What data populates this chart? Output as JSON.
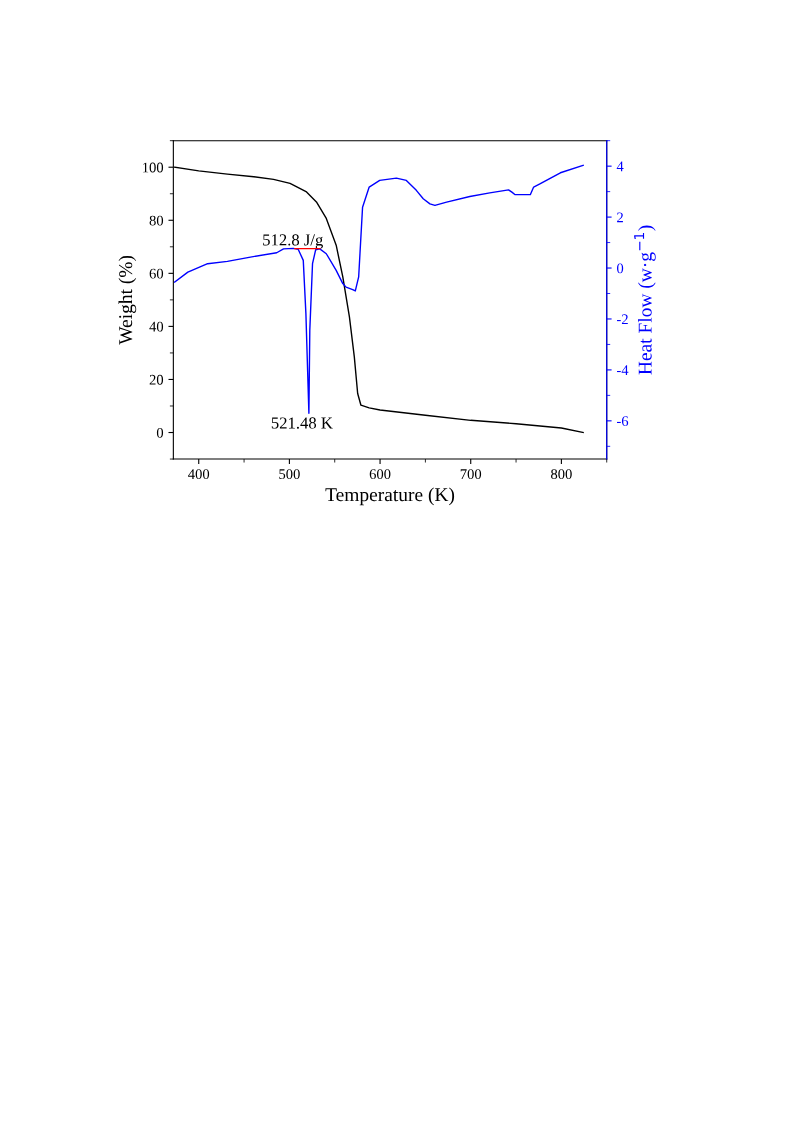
{
  "chart_data": {
    "type": "line",
    "xlabel": "Temperature (K)",
    "ylabel": "Weight (%)",
    "y2label": "Heat Flow (w·g$^{−1}$)",
    "xlim": [
      372,
      850
    ],
    "xticks": [
      400,
      {
        "value": 450,
        "label": null
      },
      500,
      {
        "value": 550,
        "label": null
      },
      600,
      {
        "value": 650,
        "label": null
      },
      700,
      {
        "value": 750,
        "label": null
      },
      800,
      {
        "value": 850,
        "label": null
      }
    ],
    "ylim": [
      -10,
      110
    ],
    "yticks": [
      {
        "value": -10,
        "label": null
      },
      0,
      {
        "value": 10,
        "label": null
      },
      20,
      {
        "value": 30,
        "label": null
      },
      40,
      {
        "value": 50,
        "label": null
      },
      60,
      {
        "value": 70,
        "label": null
      },
      80,
      {
        "value": 90,
        "label": null
      },
      100,
      {
        "value": 110,
        "label": null
      }
    ],
    "y2lim": [
      -7.5,
      5
    ],
    "y2ticks": [
      {
        "value": -7,
        "label": null
      },
      -6,
      {
        "value": -5,
        "label": null
      },
      -4,
      {
        "value": -3,
        "label": null
      },
      -2,
      {
        "value": -1,
        "label": null
      },
      0,
      {
        "value": 1,
        "label": null
      },
      2,
      {
        "value": 3,
        "label": null
      },
      4,
      {
        "value": 5,
        "label": null
      }
    ],
    "grid": false,
    "legend": false,
    "marker": "none",
    "line_style": "solid",
    "series": [
      {
        "color": "#000000",
        "x": [
          373.5,
          400,
          431.6,
          460.7,
          482.5,
          500.7,
          518.9,
          529.8,
          540.7,
          551.6,
          558.9,
          566.2,
          571.6,
          575.3,
          578.9,
          588,
          600,
          650,
          700,
          750,
          800,
          824
        ],
        "values": [
          100,
          98.6,
          97.4,
          96.4,
          95.4,
          93.9,
          90.7,
          86.9,
          80.7,
          70.6,
          58.7,
          43.6,
          28.5,
          14.7,
          10.3,
          9.3,
          8.5,
          6.5,
          4.6,
          3.3,
          1.7,
          0
        ]
      },
      {
        "color": "#0000ff",
        "axis": "y2",
        "x": [
          373.5,
          388,
          409.8,
          431.6,
          457,
          486,
          493.5,
          504.4,
          509.8,
          515.3,
          518.2,
          521.5,
          522.5,
          525.5,
          529,
          533.5,
          540.7,
          551.6,
          558.9,
          562.5,
          569.8,
          572.7,
          576.4,
          580.7,
          588,
          599.6,
          618,
          629,
          640,
          647.6,
          655,
          660.5,
          673.4,
          699,
          721,
          741.7,
          745.4,
          749,
          765.7,
          769.4,
          776.8,
          798.9,
          824
        ],
        "values": [
          -0.55,
          -0.16,
          0.17,
          0.26,
          0.43,
          0.6,
          0.75,
          0.77,
          0.73,
          0.3,
          -1.79,
          -5.7,
          -2.44,
          0.17,
          0.72,
          0.75,
          0.56,
          -0.09,
          -0.61,
          -0.75,
          -0.85,
          -0.9,
          -0.35,
          2.39,
          3.18,
          3.44,
          3.53,
          3.44,
          3.05,
          2.72,
          2.52,
          2.46,
          2.59,
          2.81,
          2.95,
          3.07,
          2.98,
          2.88,
          2.88,
          3.18,
          3.31,
          3.74,
          4.03
        ]
      },
      {
        "color": "#ff0000",
        "axis": "y2",
        "x": [
          506,
          533.5
        ],
        "values": [
          0.76,
          0.76
        ]
      }
    ],
    "annotations": [
      "512.8 J/g",
      "521.48 K"
    ]
  }
}
